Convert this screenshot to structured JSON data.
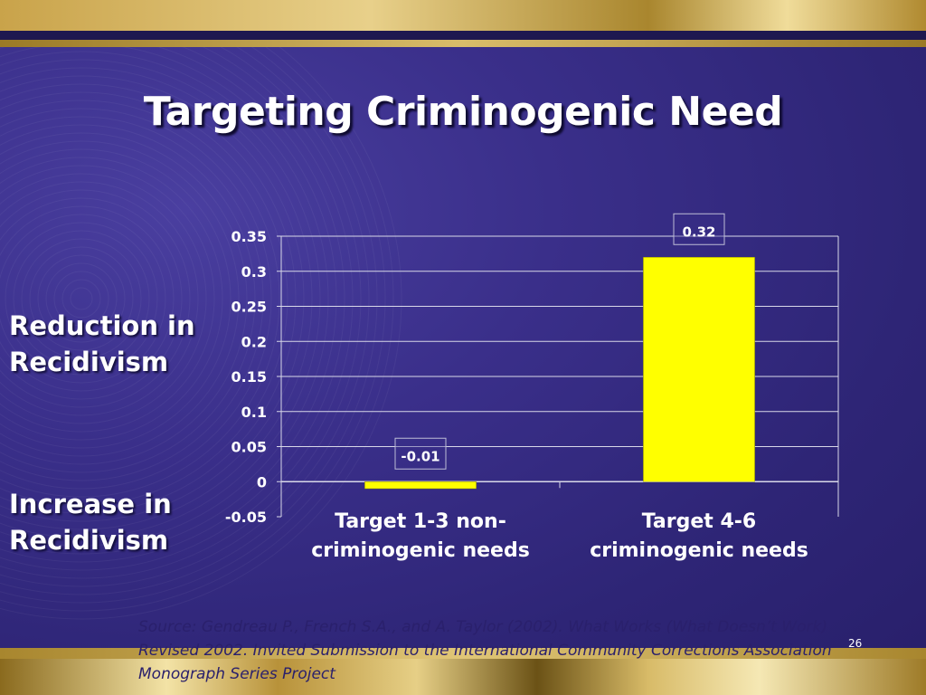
{
  "slide": {
    "title": "Targeting Criminogenic Need",
    "side_labels": {
      "reduction_line1": "Reduction in",
      "reduction_line2": "Recidivism",
      "increase_line1": "Increase in",
      "increase_line2": "Recidivism"
    },
    "source": "Source: Gendreau P., French S.A., and A. Taylor (2002). What Works (What Doesn’t Work) Revised 2002. Invited Submission to the International Community Corrections Association Monograph Series Project",
    "slide_number": "26"
  },
  "colors": {
    "bar_fill": "#ffff00",
    "bar_stroke": "#8a8a00",
    "gridline": "#d8d8e8",
    "tick_text": "#ffffff",
    "label_box_fill": "#3a2f8a",
    "label_box_stroke": "#bdbdd6"
  },
  "chart_data": {
    "type": "bar",
    "categories": [
      [
        "Target 1-3 non-",
        "criminogenic needs"
      ],
      [
        "Target 4-6",
        "criminogenic needs"
      ]
    ],
    "values": [
      -0.01,
      0.32
    ],
    "data_labels": [
      "-0.01",
      "0.32"
    ],
    "y_ticks": [
      "0.35",
      "0.3",
      "0.25",
      "0.2",
      "0.15",
      "0.1",
      "0.05",
      "0",
      "-0.05"
    ],
    "ylim": [
      -0.05,
      0.35
    ],
    "grid": true,
    "legend": "none"
  }
}
